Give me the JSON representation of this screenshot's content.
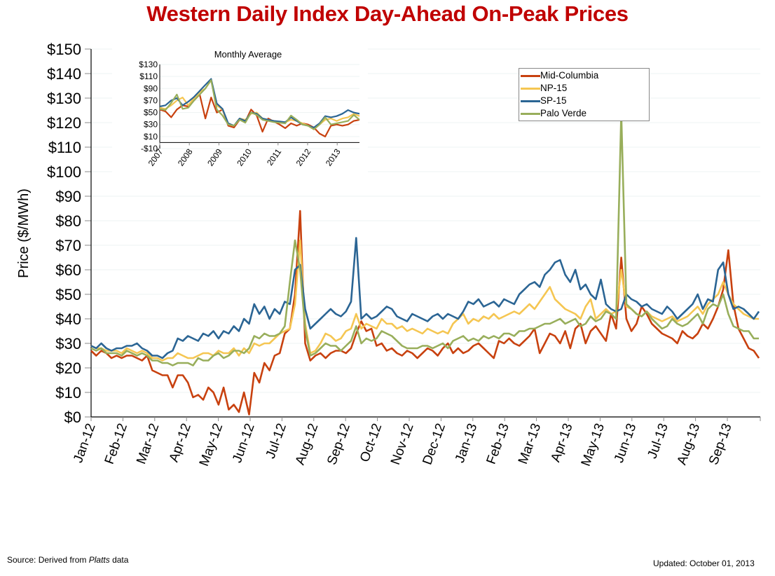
{
  "chart_data": [
    {
      "type": "line",
      "title": "Western Daily Index Day-Ahead On-Peak Prices",
      "xlabel": "",
      "ylabel": "Price ($/MWh)",
      "ylim": [
        0,
        150
      ],
      "yticks": [
        "$0",
        "$10",
        "$20",
        "$30",
        "$40",
        "$50",
        "$60",
        "$70",
        "$80",
        "$90",
        "$100",
        "$110",
        "$120",
        "$130",
        "$140",
        "$150"
      ],
      "categories": [
        "Jan-12",
        "Feb-12",
        "Mar-12",
        "Apr-12",
        "May-12",
        "Jun-12",
        "Jul-12",
        "Aug-12",
        "Sep-12",
        "Oct-12",
        "Nov-12",
        "Dec-12",
        "Jan-13",
        "Feb-13",
        "Mar-13",
        "Apr-13",
        "May-13",
        "Jun-13",
        "Jul-13",
        "Aug-13",
        "Sep-13"
      ],
      "x_note": "values sampled roughly weekly from Jan-12 to Oct-13 (index 0 = Jan-12, step = 0.25 month)",
      "legend_position": "top-right",
      "grid": true,
      "series": [
        {
          "name": "Mid-Columbia",
          "color": "#c8410f",
          "values": [
            27,
            25,
            27,
            26,
            24,
            25,
            24,
            25,
            25,
            24,
            23,
            25,
            19,
            18,
            17,
            17,
            12,
            17,
            17,
            14,
            8,
            9,
            7,
            12,
            10,
            5,
            12,
            3,
            5,
            2,
            10,
            1,
            18,
            14,
            22,
            19,
            25,
            26,
            34,
            36,
            50,
            84,
            30,
            23,
            25,
            26,
            24,
            26,
            27,
            27,
            26,
            28,
            34,
            39,
            35,
            36,
            29,
            30,
            27,
            28,
            26,
            25,
            27,
            26,
            24,
            26,
            28,
            27,
            25,
            28,
            30,
            26,
            28,
            26,
            27,
            29,
            30,
            28,
            26,
            24,
            31,
            30,
            32,
            30,
            29,
            31,
            33,
            36,
            26,
            30,
            34,
            33,
            30,
            35,
            28,
            36,
            38,
            30,
            35,
            37,
            34,
            31,
            42,
            36,
            65,
            40,
            35,
            38,
            45,
            42,
            38,
            36,
            34,
            33,
            32,
            30,
            35,
            33,
            32,
            34,
            38,
            36,
            40,
            45,
            52,
            68,
            46,
            36,
            32,
            28,
            27,
            24
          ]
        },
        {
          "name": "NP-15",
          "color": "#f5c652",
          "values": [
            29,
            28,
            28,
            27,
            27,
            27,
            26,
            28,
            27,
            26,
            27,
            26,
            24,
            24,
            23,
            24,
            24,
            26,
            25,
            24,
            24,
            25,
            26,
            26,
            25,
            27,
            26,
            26,
            28,
            25,
            28,
            26,
            30,
            29,
            30,
            30,
            32,
            34,
            35,
            36,
            46,
            72,
            38,
            26,
            27,
            30,
            34,
            33,
            31,
            32,
            35,
            36,
            42,
            36,
            38,
            37,
            36,
            40,
            38,
            38,
            36,
            37,
            35,
            36,
            35,
            34,
            36,
            35,
            34,
            35,
            34,
            38,
            40,
            42,
            38,
            40,
            39,
            41,
            40,
            42,
            40,
            41,
            42,
            43,
            42,
            44,
            46,
            44,
            47,
            50,
            53,
            48,
            46,
            44,
            43,
            42,
            40,
            45,
            48,
            40,
            42,
            44,
            42,
            43,
            60,
            45,
            44,
            42,
            41,
            43,
            41,
            40,
            39,
            40,
            41,
            39,
            40,
            41,
            43,
            45,
            42,
            46,
            48,
            50,
            55,
            50,
            46,
            44,
            42,
            41,
            40,
            40
          ]
        },
        {
          "name": "SP-15",
          "color": "#2b6594",
          "values": [
            29,
            28,
            30,
            28,
            27,
            28,
            28,
            29,
            29,
            30,
            28,
            27,
            25,
            25,
            24,
            26,
            27,
            32,
            31,
            33,
            32,
            31,
            34,
            33,
            35,
            32,
            35,
            34,
            37,
            35,
            40,
            38,
            46,
            42,
            45,
            40,
            44,
            42,
            47,
            46,
            60,
            62,
            44,
            36,
            38,
            40,
            42,
            44,
            42,
            41,
            43,
            47,
            73,
            40,
            42,
            40,
            41,
            43,
            45,
            44,
            41,
            40,
            39,
            42,
            41,
            40,
            39,
            41,
            42,
            40,
            42,
            41,
            40,
            43,
            47,
            46,
            48,
            45,
            46,
            47,
            45,
            48,
            47,
            46,
            50,
            52,
            54,
            55,
            53,
            58,
            60,
            63,
            64,
            58,
            55,
            60,
            52,
            54,
            50,
            48,
            56,
            46,
            44,
            43,
            44,
            50,
            48,
            47,
            45,
            46,
            44,
            43,
            42,
            45,
            43,
            40,
            42,
            44,
            46,
            50,
            44,
            48,
            47,
            60,
            63,
            50,
            44,
            45,
            44,
            42,
            40,
            43
          ]
        },
        {
          "name": "Palo Verde",
          "color": "#98ae5b",
          "values": [
            28,
            27,
            28,
            26,
            26,
            26,
            25,
            27,
            26,
            25,
            26,
            25,
            23,
            23,
            22,
            22,
            21,
            22,
            22,
            22,
            21,
            24,
            23,
            23,
            25,
            26,
            24,
            25,
            27,
            27,
            26,
            28,
            33,
            32,
            34,
            33,
            33,
            34,
            37,
            55,
            72,
            60,
            36,
            25,
            26,
            28,
            30,
            29,
            29,
            27,
            29,
            31,
            37,
            30,
            32,
            31,
            32,
            35,
            34,
            33,
            31,
            29,
            28,
            28,
            28,
            29,
            29,
            28,
            29,
            30,
            28,
            31,
            32,
            33,
            31,
            32,
            31,
            33,
            32,
            33,
            32,
            34,
            34,
            33,
            35,
            35,
            36,
            36,
            37,
            38,
            38,
            39,
            40,
            38,
            39,
            40,
            37,
            38,
            41,
            39,
            40,
            43,
            42,
            40,
            124,
            46,
            44,
            42,
            41,
            43,
            40,
            38,
            36,
            37,
            40,
            38,
            37,
            38,
            40,
            42,
            38,
            44,
            46,
            45,
            50,
            42,
            37,
            36,
            35,
            35,
            32,
            32
          ]
        }
      ]
    },
    {
      "type": "line",
      "title": "Monthly Average",
      "ylim": [
        -10,
        130
      ],
      "yticks": [
        "-$10",
        "$10",
        "$30",
        "$50",
        "$70",
        "$90",
        "$110",
        "$130"
      ],
      "categories": [
        "2007",
        "2008",
        "2009",
        "2010",
        "2011",
        "2012",
        "2013"
      ],
      "x_note": "quarterly samples from Jan-2007 to Oct-2013",
      "series": [
        {
          "name": "Mid-Columbia",
          "values": [
            55,
            52,
            42,
            55,
            62,
            60,
            70,
            80,
            40,
            75,
            50,
            55,
            28,
            25,
            38,
            35,
            55,
            45,
            18,
            40,
            35,
            30,
            24,
            32,
            28,
            32,
            30,
            25,
            15,
            10,
            28,
            30,
            28,
            30,
            36,
            38
          ]
        },
        {
          "name": "NP-15",
          "values": [
            58,
            56,
            62,
            70,
            75,
            62,
            74,
            84,
            90,
            104,
            62,
            55,
            30,
            28,
            40,
            38,
            48,
            50,
            40,
            38,
            36,
            33,
            34,
            38,
            36,
            32,
            28,
            22,
            30,
            38,
            40,
            36,
            40,
            42,
            48,
            44
          ]
        },
        {
          "name": "SP-15",
          "values": [
            60,
            62,
            70,
            74,
            62,
            68,
            76,
            86,
            96,
            106,
            65,
            56,
            32,
            28,
            40,
            36,
            50,
            48,
            40,
            38,
            36,
            35,
            34,
            42,
            36,
            30,
            28,
            25,
            32,
            44,
            42,
            44,
            48,
            54,
            50,
            48
          ]
        },
        {
          "name": "Palo Verde",
          "values": [
            56,
            54,
            66,
            80,
            56,
            58,
            70,
            80,
            90,
            104,
            55,
            45,
            30,
            28,
            38,
            33,
            50,
            46,
            38,
            36,
            34,
            33,
            32,
            45,
            38,
            30,
            28,
            22,
            30,
            42,
            30,
            32,
            34,
            36,
            46,
            38
          ]
        }
      ]
    }
  ],
  "legend": {
    "items": [
      "Mid-Columbia",
      "NP-15",
      "SP-15",
      "Palo Verde"
    ]
  },
  "footer": {
    "source_prefix": "Source: Derived from ",
    "source_italic": "Platts",
    "source_suffix": " data",
    "updated": "Updated: October 01, 2013"
  }
}
